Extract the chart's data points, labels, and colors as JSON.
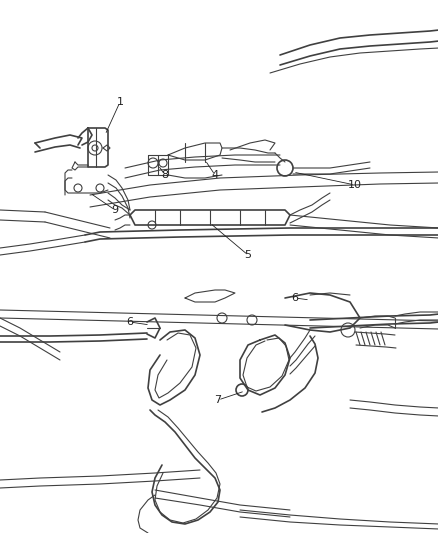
{
  "bg_color": "#ffffff",
  "line_color": "#404040",
  "label_color": "#222222",
  "fig_width": 4.39,
  "fig_height": 5.33,
  "dpi": 100
}
